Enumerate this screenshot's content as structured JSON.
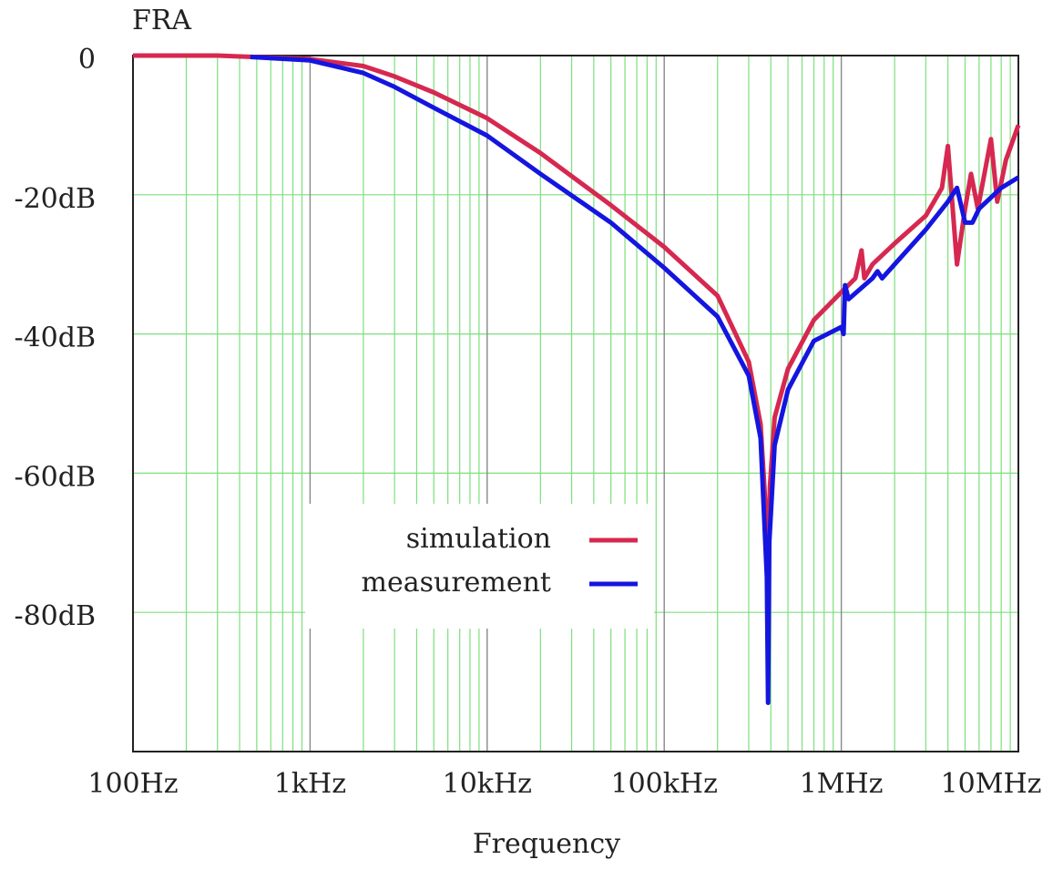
{
  "chart_data": {
    "type": "line",
    "title": "FRA",
    "x_label": "Frequency",
    "x_scale": "log",
    "xlim": [
      100,
      10000000
    ],
    "ylim": [
      -100,
      0
    ],
    "xticks": [
      {
        "value": 100,
        "label": "100Hz"
      },
      {
        "value": 1000,
        "label": "1kHz"
      },
      {
        "value": 10000,
        "label": "10kHz"
      },
      {
        "value": 100000,
        "label": "100kHz"
      },
      {
        "value": 1000000,
        "label": "1MHz"
      },
      {
        "value": 10000000,
        "label": "10MHz"
      }
    ],
    "x_minor_ticks": [
      200,
      300,
      400,
      500,
      600,
      700,
      800,
      900,
      2000,
      3000,
      4000,
      5000,
      6000,
      7000,
      8000,
      9000,
      20000,
      30000,
      40000,
      50000,
      60000,
      70000,
      80000,
      90000,
      200000,
      300000,
      400000,
      500000,
      600000,
      700000,
      800000,
      900000,
      2000000,
      3000000,
      4000000,
      5000000,
      6000000,
      7000000,
      8000000,
      9000000
    ],
    "yticks": [
      0,
      {
        "value": -20,
        "label": "-20dB"
      },
      {
        "value": -40,
        "label": "-40dB"
      },
      {
        "value": -60,
        "label": "-60dB"
      },
      {
        "value": -80,
        "label": "-80dB"
      }
    ],
    "grid": true,
    "grid_color": "#7be07b",
    "major_grid_color": "#888888",
    "legend": "lower center",
    "series": [
      {
        "name": "simulation",
        "color": "#d62850",
        "x": [
          100,
          300,
          1000,
          2000,
          3000,
          5000,
          10000,
          20000,
          50000,
          100000,
          200000,
          300000,
          350000,
          380000,
          386000,
          395000,
          420000,
          500000,
          700000,
          1000000,
          1200000,
          1300000,
          1350000,
          1500000,
          2000000,
          3000000,
          3700000,
          4000000,
          4500000,
          5000000,
          5400000,
          5900000,
          7000000,
          7600000,
          8500000,
          10000000
        ],
        "values": [
          0,
          0,
          -0.5,
          -1.5,
          -3,
          -5.3,
          -9,
          -14,
          -21.5,
          -27.5,
          -34.5,
          -44,
          -53,
          -68,
          -80,
          -62,
          -52,
          -45,
          -38,
          -34,
          -32,
          -28,
          -32,
          -30,
          -27,
          -23,
          -19,
          -13,
          -30,
          -22,
          -17,
          -22,
          -12,
          -21,
          -15,
          -10
        ]
      },
      {
        "name": "measurement",
        "color": "#1515e0",
        "x": [
          460,
          1000,
          2000,
          3000,
          5000,
          10000,
          20000,
          50000,
          100000,
          200000,
          300000,
          350000,
          380000,
          386000,
          392000,
          420000,
          500000,
          700000,
          1000000,
          1030000,
          1050000,
          1100000,
          1500000,
          1600000,
          1700000,
          2000000,
          3000000,
          4000000,
          4500000,
          5000000,
          5500000,
          6000000,
          8000000,
          10000000
        ],
        "values": [
          -0.2,
          -0.7,
          -2.5,
          -4.5,
          -7.5,
          -11.5,
          -17,
          -24,
          -30.5,
          -37.5,
          -46,
          -55,
          -75,
          -93,
          -70,
          -56,
          -48,
          -41,
          -39,
          -40,
          -33,
          -35,
          -32,
          -31,
          -32,
          -30,
          -25,
          -21,
          -19,
          -24,
          -24,
          -22,
          -19,
          -17.5
        ]
      }
    ]
  }
}
